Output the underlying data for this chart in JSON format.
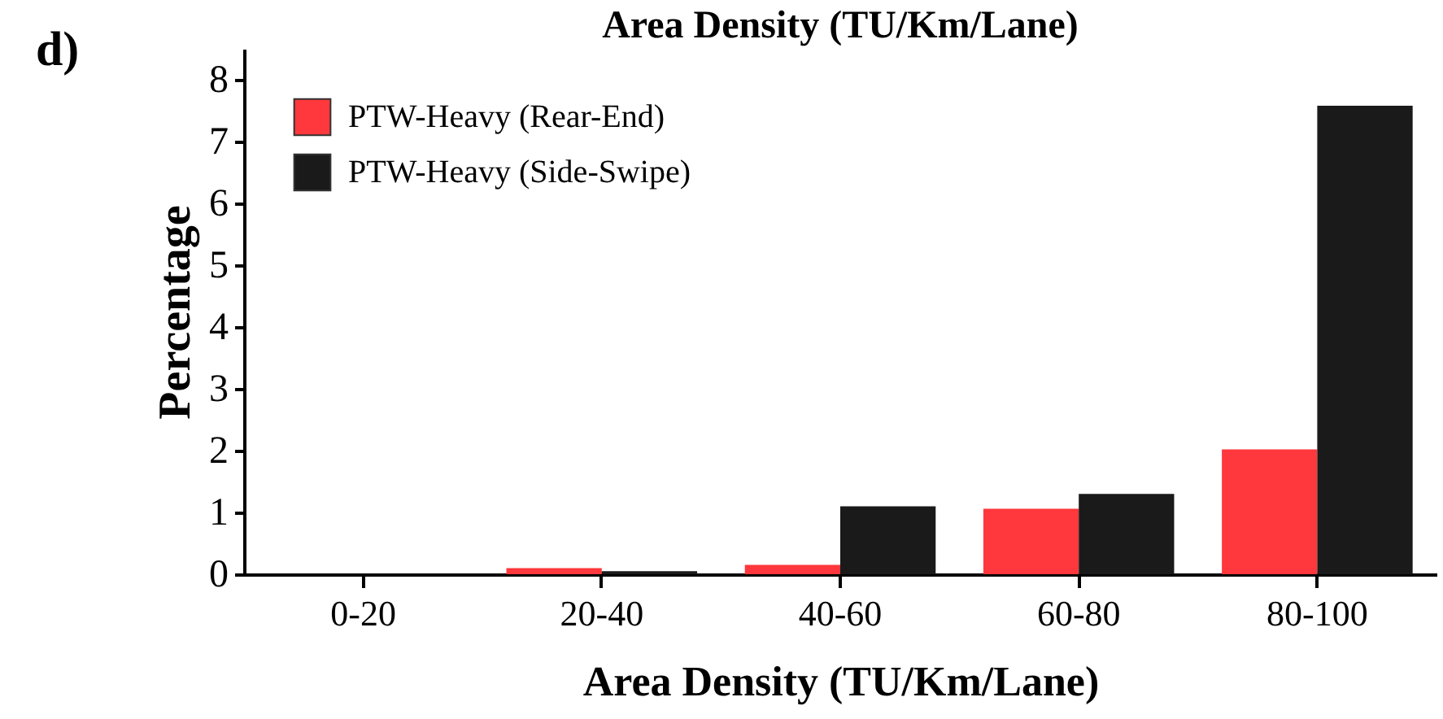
{
  "chart_data": {
    "type": "bar",
    "title": "Area Density (TU/Km/Lane)",
    "xlabel": "Area Density (TU/Km/Lane)",
    "ylabel": "Percentage",
    "annotations": [
      "d)"
    ],
    "categories": [
      "0-20",
      "20-40",
      "40-60",
      "60-80",
      "80-100"
    ],
    "series": [
      {
        "name": "PTW-Heavy (Rear-End)",
        "color": "#fe383c",
        "values": [
          0,
          0.1,
          0.15,
          1.06,
          2.02
        ]
      },
      {
        "name": "PTW-Heavy (Side-Swipe)",
        "color": "#1a1a1a",
        "values": [
          0,
          0.05,
          1.1,
          1.3,
          7.58
        ]
      }
    ],
    "ylim": [
      0,
      8.5
    ],
    "yticks": [
      0,
      1,
      2,
      3,
      4,
      5,
      6,
      7,
      8
    ],
    "grid": false,
    "legend": "top left"
  }
}
